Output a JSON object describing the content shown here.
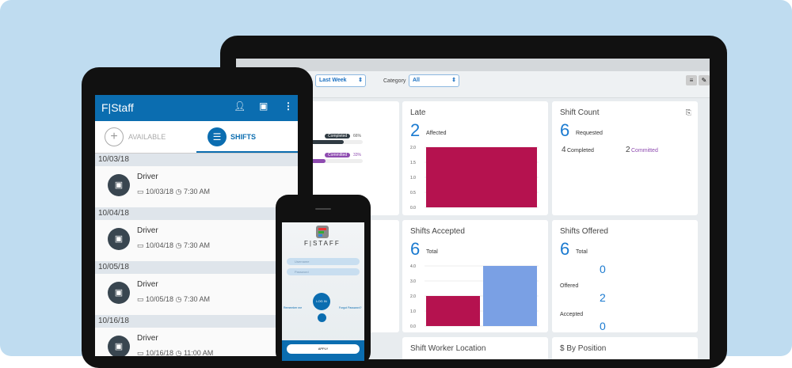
{
  "colors": {
    "background": "#bfdcf0",
    "brand": "#0b6db0",
    "accent_number": "#1a7ad0",
    "late_bar": "#b5124f",
    "accepted_bar": "#7aa0e4",
    "committed": "#8e4bb0"
  },
  "dashboard": {
    "filters": {
      "period_value": "Last Week",
      "category_label": "Category",
      "category_value": "All"
    },
    "toolbar_icons": [
      "menu-icon",
      "edit-icon"
    ],
    "progress": [
      {
        "label": "Completed",
        "percent": 66,
        "text": "66%"
      },
      {
        "label": "Committed",
        "percent": 33,
        "text": "33%"
      }
    ],
    "late": {
      "title": "Late",
      "count": "2",
      "count_label": "Affected"
    },
    "shift_count": {
      "title": "Shift Count",
      "requested": "6",
      "requested_label": "Requested",
      "completed": "4",
      "completed_label": "Completed",
      "committed": "2",
      "committed_label": "Committed"
    },
    "shifts_accepted": {
      "title": "Shifts Accepted",
      "total": "6",
      "total_label": "Total"
    },
    "shifts_offered": {
      "title": "Shifts Offered",
      "total": "6",
      "total_label": "Total",
      "rows": [
        {
          "value": "0",
          "label": "Offered"
        },
        {
          "value": "2",
          "label": "Accepted"
        },
        {
          "value": "0",
          "label": ""
        }
      ]
    },
    "bottom_titles": [
      "Shift Worker Location",
      "$ By Position"
    ]
  },
  "chart_data": [
    {
      "type": "bar",
      "title": "Late",
      "categories": [
        ""
      ],
      "values": [
        2
      ],
      "ylim": [
        0,
        2
      ],
      "yticks": [
        "0.0",
        "0.5",
        "1.0",
        "1.5",
        "2.0"
      ],
      "colors": [
        "#b5124f"
      ]
    },
    {
      "type": "bar",
      "title": "Shifts Accepted",
      "categories": [
        "",
        ""
      ],
      "values": [
        2,
        4
      ],
      "ylim": [
        0,
        4
      ],
      "yticks": [
        "0.0",
        "1.0",
        "2.0",
        "3.0",
        "4.0"
      ],
      "colors": [
        "#b5124f",
        "#7aa0e4"
      ]
    }
  ],
  "tablet": {
    "app_title": "F|Staff",
    "tabs": [
      {
        "label": "AVAILABLE",
        "active": false
      },
      {
        "label": "SHIFTS",
        "active": true
      }
    ],
    "groups": [
      {
        "date": "10/03/18",
        "role": "Driver",
        "day": "10/03/18",
        "time": "7:30 AM"
      },
      {
        "date": "10/04/18",
        "role": "Driver",
        "day": "10/04/18",
        "time": "7:30 AM"
      },
      {
        "date": "10/05/18",
        "role": "Driver",
        "day": "10/05/18",
        "time": "7:30 AM"
      },
      {
        "date": "10/16/18",
        "role": "Driver",
        "day": "10/16/18",
        "time": "11:00 AM"
      }
    ]
  },
  "phone": {
    "logo": "F|STAFF",
    "username_placeholder": "Username",
    "password_placeholder": "Password",
    "login": "LOG IN",
    "remember": "Remember me",
    "forgot": "Forgot Password?",
    "apply": "APPLY"
  }
}
